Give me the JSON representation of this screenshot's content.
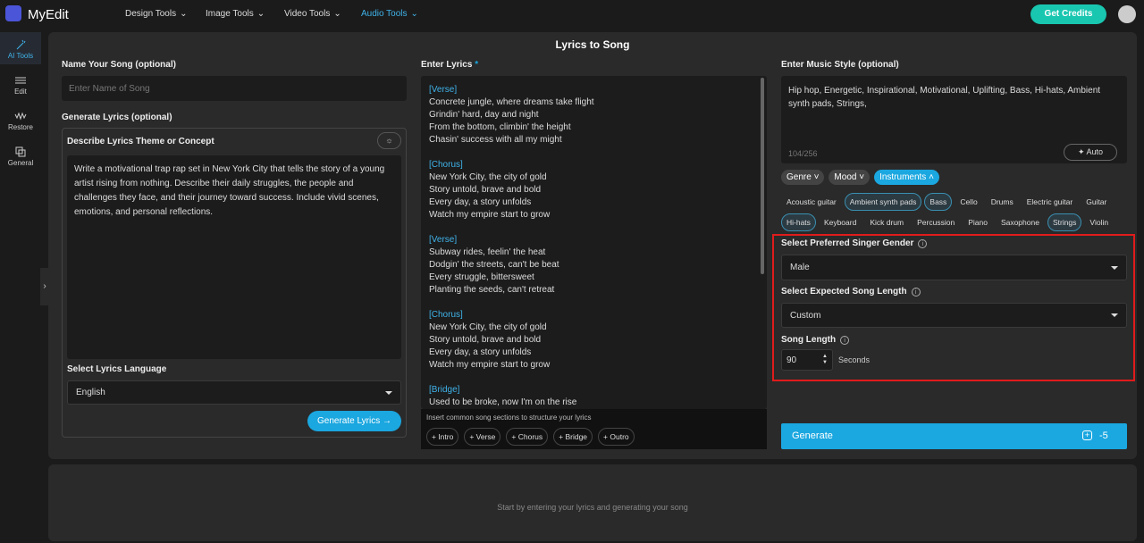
{
  "nav": {
    "logo": "MyEdit",
    "items": [
      "Design Tools",
      "Image Tools",
      "Video Tools",
      "Audio Tools"
    ],
    "active": 3,
    "cta": "Get Credits"
  },
  "sidebar": {
    "items": [
      "AI Tools",
      "Edit",
      "Restore",
      "General"
    ],
    "active": 0
  },
  "page": {
    "title": "Lyrics to Song"
  },
  "name_song": {
    "label": "Name Your Song (optional)",
    "placeholder": "Enter Name of Song"
  },
  "generate_lyrics": {
    "label": "Generate Lyrics (optional)",
    "theme_label": "Describe Lyrics Theme or Concept",
    "theme_text": "Write a motivational trap rap set in New York City that tells the story of a young artist rising from nothing. Describe their daily struggles, the people and challenges they face, and their journey toward success. Include vivid scenes, emotions, and personal reflections.",
    "language_label": "Select Lyrics Language",
    "language": "English",
    "button": "Generate Lyrics"
  },
  "lyrics": {
    "label": "Enter Lyrics",
    "required": "*",
    "sections": [
      {
        "tag": "[Verse]",
        "lines": [
          "Concrete jungle, where dreams take flight",
          "Grindin' hard, day and night",
          "From the bottom, climbin' the height",
          "Chasin' success with all my might"
        ]
      },
      {
        "tag": "[Chorus]",
        "lines": [
          "New York City, the city of gold",
          "Story untold, brave and bold",
          "Every day, a story unfolds",
          "Watch my empire start to grow"
        ]
      },
      {
        "tag": "[Verse]",
        "lines": [
          "Subway rides, feelin' the heat",
          "Dodgin' the streets, can't be beat",
          "Every struggle, bittersweet",
          "Planting the seeds, can't retreat"
        ]
      },
      {
        "tag": "[Chorus]",
        "lines": [
          "New York City, the city of gold",
          "Story untold, brave and bold",
          "Every day, a story unfolds",
          "Watch my empire start to grow"
        ]
      },
      {
        "tag": "[Bridge]",
        "lines": [
          "Used to be broke, now I'm on the rise"
        ]
      }
    ],
    "hint": "Insert common song sections to structure your lyrics",
    "chips": [
      "+ Intro",
      "+ Verse",
      "+ Chorus",
      "+ Bridge",
      "+ Outro"
    ]
  },
  "style": {
    "label": "Enter Music Style (optional)",
    "text": "Hip hop, Energetic, Inspirational, Motivational, Uplifting, Bass, Hi-hats, Ambient synth pads, Strings,",
    "counter": "104/256",
    "auto": "Auto",
    "tabs": [
      "Genre",
      "Mood",
      "Instruments"
    ],
    "active_tab": 2,
    "tag_rows": [
      [
        {
          "name": "Acoustic guitar",
          "selected": false
        },
        {
          "name": "Ambient synth pads",
          "selected": true
        },
        {
          "name": "Bass",
          "selected": true
        },
        {
          "name": "Cello",
          "selected": false
        },
        {
          "name": "Drums",
          "selected": false
        },
        {
          "name": "Electric guitar",
          "selected": false
        },
        {
          "name": "Guitar",
          "selected": false
        }
      ],
      [
        {
          "name": "Hi-hats",
          "selected": true
        },
        {
          "name": "Keyboard",
          "selected": false
        },
        {
          "name": "Kick drum",
          "selected": false
        },
        {
          "name": "Percussion",
          "selected": false
        },
        {
          "name": "Piano",
          "selected": false
        },
        {
          "name": "Saxophone",
          "selected": false
        },
        {
          "name": "Strings",
          "selected": true
        },
        {
          "name": "Violin",
          "selected": false
        }
      ]
    ]
  },
  "singer": {
    "label": "Select Preferred Singer Gender",
    "value": "Male"
  },
  "length": {
    "label": "Select Expected Song Length",
    "value": "Custom"
  },
  "song_length": {
    "label": "Song Length",
    "value": 90,
    "unit": "Seconds"
  },
  "generate": {
    "label": "Generate",
    "cost": -5
  },
  "empty_state": "Start by entering your lyrics and generating your song"
}
